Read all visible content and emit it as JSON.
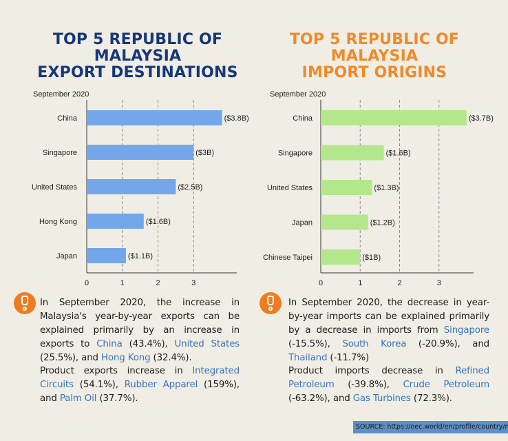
{
  "colors": {
    "export_title": "#17377a",
    "import_title": "#ef8a2a",
    "export_bar": "#74a7ea",
    "import_bar": "#b4e68b",
    "highlight": "#3a73b8",
    "accent": "#ec7d23"
  },
  "export": {
    "title_lines": [
      "TOP 5 REPUBLIC OF",
      "MALAYSIA",
      "EXPORT DESTINATIONS"
    ],
    "period": "September 2020",
    "note_p1": [
      "In September 2020, the increase in Malaysia's year-by-year exports can be explained primarily by an increase in exports to ",
      "China",
      " (43.4%), ",
      "United States",
      " (25.5%), and ",
      "Hong Kong",
      " (32.4%)."
    ],
    "note_p2": [
      "Product exports increase in ",
      "Integrated Circuits",
      " (54.1%), ",
      "Rubber Apparel",
      " (159%), and ",
      "Palm Oil",
      " (37.7%)."
    ]
  },
  "import": {
    "title_lines": [
      "TOP 5 REPUBLIC OF",
      "MALAYSIA",
      "IMPORT ORIGINS"
    ],
    "period": "September 2020",
    "note_p1": [
      "In September 2020, the decrease in year-by-year imports can be explained primarily by a decrease in imports from ",
      "Singapore",
      " (-15.5%), ",
      "South Korea",
      " (-20.9%), and ",
      "Thailand",
      " (-11.7%)"
    ],
    "note_p2": [
      "Product imports decrease in ",
      "Refined Petroleum",
      " (-39.8%), ",
      "Crude Petroleum",
      " (-63.2%), and ",
      "Gas Turbines",
      " (72.3%)."
    ]
  },
  "chart_data": [
    {
      "type": "bar",
      "orientation": "horizontal",
      "title": "TOP 5 REPUBLIC OF MALAYSIA EXPORT DESTINATIONS",
      "subtitle": "September 2020",
      "categories": [
        "China",
        "Singapore",
        "United States",
        "Hong Kong",
        "Japan"
      ],
      "values": [
        3.8,
        3.0,
        2.5,
        1.6,
        1.1
      ],
      "labels": [
        "($3.8B)",
        "($3B)",
        "($2.5B)",
        "($1.6B)",
        "($1.1B)"
      ],
      "xticks": [
        0,
        1,
        2,
        3
      ],
      "xlim": [
        0,
        4
      ],
      "grid": "vertical dashed"
    },
    {
      "type": "bar",
      "orientation": "horizontal",
      "title": "TOP 5 REPUBLIC OF MALAYSIA IMPORT ORIGINS",
      "subtitle": "September 2020",
      "categories": [
        "China",
        "Singapore",
        "United States",
        "Japan",
        "Chinese Taipei"
      ],
      "values": [
        3.7,
        1.6,
        1.3,
        1.2,
        1.0
      ],
      "labels": [
        "($3.7B)",
        "($1.6B)",
        "($1.3B)",
        "($1.2B)",
        "($1B)"
      ],
      "xticks": [
        0,
        1,
        2,
        3
      ],
      "xlim": [
        0,
        4
      ],
      "grid": "vertical dashed"
    }
  ],
  "source": "SOURCE: https://oec.world/en/profile/country/mys"
}
